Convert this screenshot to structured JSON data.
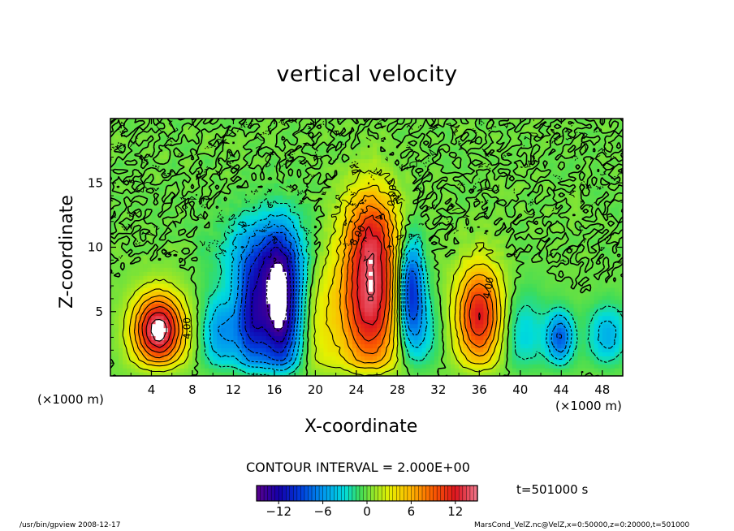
{
  "chart_data": {
    "type": "heatmap",
    "title": "vertical velocity",
    "xlabel": "X-coordinate",
    "ylabel": "Z-coordinate",
    "x_unit": "(×1000 m)",
    "xlim": [
      0,
      50
    ],
    "ylim": [
      0,
      20
    ],
    "x_ticks": [
      4,
      8,
      12,
      16,
      20,
      24,
      28,
      32,
      36,
      40,
      44,
      48
    ],
    "y_ticks": [
      5,
      10,
      15
    ],
    "contour_interval_label": "CONTOUR INTERVAL = 2.000E+00",
    "colorbar": {
      "min": -15,
      "max": 15,
      "ticks": [
        -12,
        -6,
        0,
        6,
        12
      ]
    },
    "contour_labels": [
      "4.00",
      "4.00",
      "0.00",
      "8.00"
    ],
    "features": [
      {
        "x": 4.7,
        "z": 3.6,
        "w": 15.5,
        "sx": 1.7,
        "sz": 1.9
      },
      {
        "x": 10.8,
        "z": 3.4,
        "w": -6.0,
        "sx": 1.3,
        "sz": 2.0
      },
      {
        "x": 13.8,
        "z": 4.5,
        "w": -10.0,
        "sx": 1.1,
        "sz": 3.0
      },
      {
        "x": 16.6,
        "z": 5.2,
        "w": -15.0,
        "sx": 1.3,
        "sz": 3.6
      },
      {
        "x": 15.0,
        "z": 9.5,
        "w": -6.0,
        "sx": 2.8,
        "sz": 2.2
      },
      {
        "x": 20.6,
        "z": 4.0,
        "w": 2.5,
        "sx": 1.2,
        "sz": 4.0
      },
      {
        "x": 25.3,
        "z": 6.0,
        "w": 13.5,
        "sx": 2.1,
        "sz": 4.2
      },
      {
        "x": 25.5,
        "z": 11.5,
        "w": 6.0,
        "sx": 1.7,
        "sz": 2.5
      },
      {
        "x": 29.3,
        "z": 7.0,
        "w": -11.0,
        "sx": 0.9,
        "sz": 2.6
      },
      {
        "x": 30.0,
        "z": 3.5,
        "w": -4.0,
        "sx": 1.4,
        "sz": 2.0
      },
      {
        "x": 36.0,
        "z": 4.7,
        "w": 12.0,
        "sx": 1.6,
        "sz": 2.7
      },
      {
        "x": 40.3,
        "z": 3.4,
        "w": -3.5,
        "sx": 1.6,
        "sz": 2.2
      },
      {
        "x": 43.9,
        "z": 3.0,
        "w": -8.0,
        "sx": 0.9,
        "sz": 1.4
      },
      {
        "x": 48.5,
        "z": 3.2,
        "w": -5.0,
        "sx": 1.3,
        "sz": 1.6
      }
    ],
    "time_label": "t=501000 s"
  },
  "footer": {
    "left": "/usr/bin/gpview  2008-12-17",
    "right": "MarsCond_VelZ.nc@VelZ,x=0:50000,z=0:20000,t=501000"
  }
}
